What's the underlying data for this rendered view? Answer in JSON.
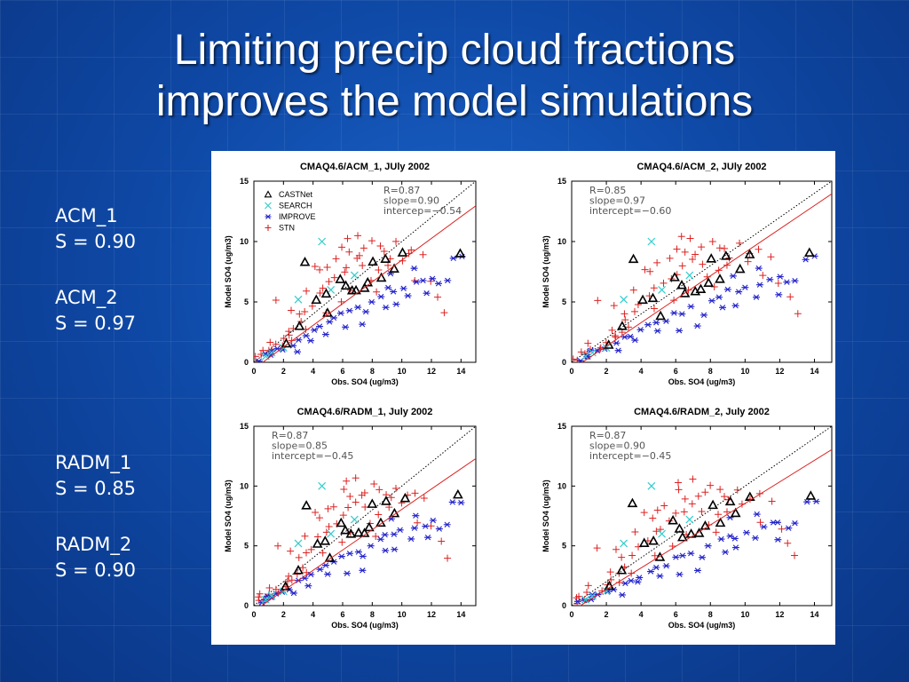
{
  "slide": {
    "title_line1": "Limiting precip cloud fractions",
    "title_line2": "improves the model simulations",
    "notes": [
      {
        "name": "ACM_1",
        "slope": "S = 0.90"
      },
      {
        "name": "ACM_2",
        "slope": "S = 0.97"
      },
      {
        "name": "RADM_1",
        "slope": "S = 0.85"
      },
      {
        "name": "RADM_2",
        "slope": "S = 0.90"
      }
    ]
  },
  "colors": {
    "background": "#1257b8",
    "castnet": "#000000",
    "search": "#33cccc",
    "improve": "#2222cc",
    "stn": "#dd2222",
    "regression_line": "#dd2222",
    "one_to_one_line": "#000000"
  },
  "legend": [
    {
      "label": "CASTNet",
      "marker": "triangle"
    },
    {
      "label": "SEARCH",
      "marker": "x"
    },
    {
      "label": "IMPROVE",
      "marker": "asterisk"
    },
    {
      "label": "STN",
      "marker": "plus"
    }
  ],
  "chart_data": [
    {
      "type": "scatter",
      "title": "CMAQ4.6/ACM_1, JUly 2002",
      "xlabel": "Obs. SO4 (ug/m3)",
      "ylabel": "Model SO4 (ug/m3)",
      "xlim": [
        0,
        15
      ],
      "ylim": [
        0,
        15
      ],
      "xticks": [
        "0",
        "2",
        "4",
        "6",
        "8",
        "10",
        "12",
        "14"
      ],
      "yticks": [
        "0",
        "5",
        "10",
        "15"
      ],
      "stats": [
        "R=0.87",
        "slope=0.90",
        "intercep=−0.54"
      ],
      "regression": {
        "slope": 0.9,
        "intercept": -0.54
      },
      "show_legend": true,
      "one_to_one_line": true
    },
    {
      "type": "scatter",
      "title": "CMAQ4.6/ACM_2, JUly 2002",
      "xlabel": "Obs. SO4 (ug/m3)",
      "ylabel": "Model SO4 (ug/m3)",
      "xlim": [
        0,
        15
      ],
      "ylim": [
        0,
        15
      ],
      "xticks": [
        "0",
        "2",
        "4",
        "6",
        "8",
        "10",
        "12",
        "14"
      ],
      "yticks": [
        "0",
        "5",
        "10",
        "15"
      ],
      "stats": [
        "R=0.85",
        "slope=0.97",
        "intercept=−0.60"
      ],
      "regression": {
        "slope": 0.97,
        "intercept": -0.6
      },
      "show_legend": false,
      "one_to_one_line": true
    },
    {
      "type": "scatter",
      "title": "CMAQ4.6/RADM_1, July 2002",
      "xlabel": "Obs. SO4 (ug/m3)",
      "ylabel": "Model SO4 (ug/m3)",
      "xlim": [
        0,
        15
      ],
      "ylim": [
        0,
        15
      ],
      "xticks": [
        "0",
        "2",
        "4",
        "6",
        "8",
        "10",
        "12",
        "14"
      ],
      "yticks": [
        "0",
        "5",
        "10",
        "15"
      ],
      "stats": [
        "R=0.87",
        "slope=0.85",
        "intercept=−0.45"
      ],
      "regression": {
        "slope": 0.85,
        "intercept": -0.45
      },
      "show_legend": false,
      "one_to_one_line": true
    },
    {
      "type": "scatter",
      "title": "CMAQ4.6/RADM_2, July 2002",
      "xlabel": "Obs. SO4 (ug/m3)",
      "ylabel": "Model SO4 (ug/m3)",
      "xlim": [
        0,
        15
      ],
      "ylim": [
        0,
        15
      ],
      "xticks": [
        "0",
        "2",
        "4",
        "6",
        "8",
        "10",
        "12",
        "14"
      ],
      "yticks": [
        "0",
        "5",
        "10",
        "15"
      ],
      "stats": [
        "R=0.87",
        "slope=0.90",
        "intercept=−0.45"
      ],
      "regression": {
        "slope": 0.9,
        "intercept": -0.45
      },
      "show_legend": false,
      "one_to_one_line": true
    }
  ],
  "series_points": {
    "castnet": [
      [
        3.6,
        8.5
      ],
      [
        4.2,
        5.2
      ],
      [
        5.8,
        7.0
      ],
      [
        6.2,
        6.5
      ],
      [
        7.0,
        6.0
      ],
      [
        7.5,
        6.2
      ],
      [
        8.0,
        8.5
      ],
      [
        8.6,
        6.8
      ],
      [
        9.0,
        8.7
      ],
      [
        10.2,
        9.0
      ],
      [
        13.8,
        9.2
      ],
      [
        5.0,
        4.0
      ],
      [
        6.5,
        5.8
      ],
      [
        3.0,
        3.0
      ],
      [
        2.2,
        1.5
      ],
      [
        4.8,
        5.5
      ],
      [
        7.8,
        6.6
      ],
      [
        9.6,
        7.8
      ]
    ],
    "search": [
      [
        4.6,
        10.0
      ],
      [
        3.0,
        5.2
      ],
      [
        1.2,
        0.8
      ],
      [
        0.8,
        0.5
      ],
      [
        2.0,
        1.2
      ],
      [
        5.2,
        6.0
      ],
      [
        6.8,
        7.2
      ]
    ],
    "improve": [
      [
        0.5,
        0.3
      ],
      [
        0.8,
        0.5
      ],
      [
        1.0,
        0.6
      ],
      [
        1.2,
        0.8
      ],
      [
        1.5,
        1.0
      ],
      [
        2.0,
        1.2
      ],
      [
        2.5,
        1.5
      ],
      [
        3.0,
        2.0
      ],
      [
        3.5,
        2.2
      ],
      [
        4.0,
        2.5
      ],
      [
        4.5,
        3.0
      ],
      [
        5.0,
        3.2
      ],
      [
        5.5,
        3.5
      ],
      [
        6.0,
        4.0
      ],
      [
        6.5,
        4.2
      ],
      [
        7.0,
        4.5
      ],
      [
        7.5,
        4.0
      ],
      [
        8.0,
        5.0
      ],
      [
        8.5,
        5.5
      ],
      [
        9.0,
        6.0
      ],
      [
        9.5,
        5.8
      ],
      [
        10.0,
        6.2
      ],
      [
        10.5,
        5.5
      ],
      [
        11.0,
        6.5
      ],
      [
        11.5,
        6.8
      ],
      [
        12.0,
        7.0
      ],
      [
        12.5,
        6.5
      ],
      [
        13.0,
        6.8
      ],
      [
        13.5,
        8.5
      ],
      [
        14.0,
        8.8
      ],
      [
        9.5,
        4.8
      ],
      [
        8.8,
        4.5
      ],
      [
        7.2,
        3.0
      ],
      [
        6.2,
        2.8
      ],
      [
        5.0,
        2.5
      ],
      [
        3.8,
        1.8
      ],
      [
        2.8,
        0.9
      ],
      [
        11.8,
        5.6
      ],
      [
        10.8,
        7.6
      ],
      [
        9.2,
        7.2
      ]
    ],
    "stn": [
      [
        0.3,
        0.2
      ],
      [
        0.6,
        0.5
      ],
      [
        0.9,
        0.9
      ],
      [
        1.2,
        1.1
      ],
      [
        1.6,
        1.4
      ],
      [
        2.0,
        1.8
      ],
      [
        2.4,
        2.2
      ],
      [
        2.8,
        2.7
      ],
      [
        3.2,
        3.4
      ],
      [
        3.6,
        4.2
      ],
      [
        4.0,
        4.8
      ],
      [
        4.4,
        5.6
      ],
      [
        4.8,
        6.0
      ],
      [
        5.2,
        6.5
      ],
      [
        5.6,
        7.0
      ],
      [
        6.0,
        7.5
      ],
      [
        6.4,
        8.0
      ],
      [
        6.8,
        8.5
      ],
      [
        7.2,
        9.0
      ],
      [
        7.6,
        9.5
      ],
      [
        8.0,
        10.0
      ],
      [
        8.4,
        9.6
      ],
      [
        8.8,
        9.2
      ],
      [
        9.2,
        8.8
      ],
      [
        9.6,
        9.8
      ],
      [
        10.0,
        8.4
      ],
      [
        10.4,
        9.0
      ],
      [
        11.0,
        7.0
      ],
      [
        11.5,
        8.8
      ],
      [
        12.0,
        6.5
      ],
      [
        12.5,
        5.2
      ],
      [
        13.0,
        4.0
      ],
      [
        1.5,
        5.0
      ],
      [
        2.5,
        4.5
      ],
      [
        3.5,
        6.0
      ],
      [
        4.5,
        7.5
      ],
      [
        5.5,
        8.5
      ],
      [
        6.5,
        9.0
      ],
      [
        7.5,
        8.0
      ],
      [
        8.5,
        7.5
      ],
      [
        5.0,
        8.0
      ],
      [
        6.0,
        9.5
      ],
      [
        7.0,
        10.5
      ],
      [
        4.2,
        7.8
      ],
      [
        3.0,
        3.8
      ],
      [
        2.2,
        2.6
      ],
      [
        1.0,
        1.5
      ],
      [
        5.8,
        5.2
      ],
      [
        6.6,
        6.2
      ],
      [
        7.8,
        7.0
      ],
      [
        9.0,
        8.0
      ],
      [
        4.8,
        4.2
      ],
      [
        3.4,
        2.8
      ],
      [
        2.6,
        2.0
      ],
      [
        1.8,
        1.2
      ],
      [
        0.5,
        1.0
      ],
      [
        0.2,
        0.5
      ],
      [
        8.2,
        6.0
      ],
      [
        10.8,
        9.4
      ],
      [
        6.2,
        10.2
      ]
    ]
  }
}
